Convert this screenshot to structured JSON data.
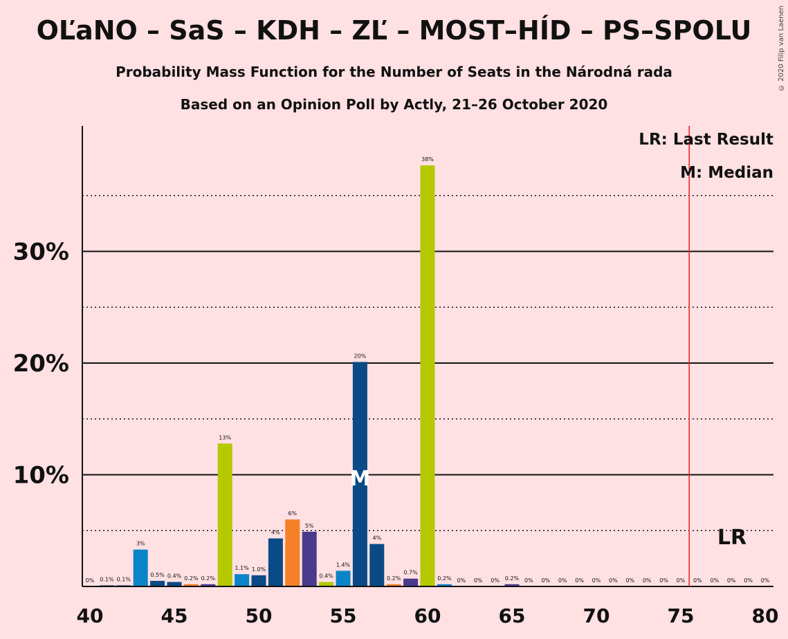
{
  "title": "OĽaNO – SaS – KDH – ZĽ – MOST–HÍD – PS–SPOLU",
  "subtitle": "Probability Mass Function for the Number of Seats in the Národná rada",
  "subtitle2": "Based on an Opinion Poll by Actly, 21–26 October 2020",
  "copyright": "© 2020 Filip van Laenen",
  "legend": {
    "lr": "LR: Last Result",
    "m": "M: Median"
  },
  "markers": {
    "lr_label": "LR",
    "lr_x": 75.5,
    "median_label": "M",
    "median_x": 56
  },
  "colors": {
    "background": "#ffe0e3",
    "lr_line": "#e0201c",
    "olano": "#b5c800",
    "sas": "#0a84c8",
    "kdh": "#0a4a86",
    "zl": "#f58025",
    "ps": "#4a3a8c"
  },
  "chart_data": {
    "type": "bar",
    "xlabel": "",
    "ylabel": "",
    "xlim": [
      40,
      80
    ],
    "ylim": [
      0,
      41
    ],
    "x_ticks": [
      40,
      45,
      50,
      55,
      60,
      65,
      70,
      75,
      80
    ],
    "y_ticks": [
      {
        "value": 10,
        "label": "10%"
      },
      {
        "value": 20,
        "label": "20%"
      },
      {
        "value": 30,
        "label": "30%"
      }
    ],
    "y_dotted_gridlines": [
      5,
      15,
      25,
      35
    ],
    "bars": [
      {
        "x": 40,
        "value": 0,
        "label": "0%",
        "color": "kdh"
      },
      {
        "x": 41,
        "value": 0.1,
        "label": "0.1%",
        "color": "kdh"
      },
      {
        "x": 42,
        "value": 0.1,
        "label": "0.1%",
        "color": "kdh"
      },
      {
        "x": 43,
        "value": 3.3,
        "label": "3%",
        "color": "sas"
      },
      {
        "x": 44,
        "value": 0.5,
        "label": "0.5%",
        "color": "kdh"
      },
      {
        "x": 45,
        "value": 0.4,
        "label": "0.4%",
        "color": "kdh"
      },
      {
        "x": 46,
        "value": 0.2,
        "label": "0.2%",
        "color": "zl"
      },
      {
        "x": 47,
        "value": 0.2,
        "label": "0.2%",
        "color": "ps"
      },
      {
        "x": 48,
        "value": 12.8,
        "label": "13%",
        "color": "olano"
      },
      {
        "x": 49,
        "value": 1.1,
        "label": "1.1%",
        "color": "sas"
      },
      {
        "x": 50,
        "value": 1.0,
        "label": "1.0%",
        "color": "kdh"
      },
      {
        "x": 51,
        "value": 4.3,
        "label": "4%",
        "color": "kdh"
      },
      {
        "x": 52,
        "value": 6.0,
        "label": "6%",
        "color": "zl"
      },
      {
        "x": 53,
        "value": 4.9,
        "label": "5%",
        "color": "ps"
      },
      {
        "x": 54,
        "value": 0.4,
        "label": "0.4%",
        "color": "olano"
      },
      {
        "x": 55,
        "value": 1.4,
        "label": "1.4%",
        "color": "sas"
      },
      {
        "x": 56,
        "value": 20.1,
        "label": "20%",
        "color": "kdh"
      },
      {
        "x": 57,
        "value": 3.8,
        "label": "4%",
        "color": "kdh"
      },
      {
        "x": 58,
        "value": 0.2,
        "label": "0.2%",
        "color": "zl"
      },
      {
        "x": 59,
        "value": 0.7,
        "label": "0.7%",
        "color": "ps"
      },
      {
        "x": 60,
        "value": 37.7,
        "label": "38%",
        "color": "olano"
      },
      {
        "x": 61,
        "value": 0.2,
        "label": "0.2%",
        "color": "sas"
      },
      {
        "x": 62,
        "value": 0,
        "label": "0%",
        "color": "kdh"
      },
      {
        "x": 63,
        "value": 0,
        "label": "0%",
        "color": "kdh"
      },
      {
        "x": 64,
        "value": 0,
        "label": "0%",
        "color": "zl"
      },
      {
        "x": 65,
        "value": 0.2,
        "label": "0.2%",
        "color": "ps"
      },
      {
        "x": 66,
        "value": 0,
        "label": "0%",
        "color": "olano"
      },
      {
        "x": 67,
        "value": 0,
        "label": "0%",
        "color": "sas"
      },
      {
        "x": 68,
        "value": 0,
        "label": "0%",
        "color": "kdh"
      },
      {
        "x": 69,
        "value": 0,
        "label": "0%",
        "color": "kdh"
      },
      {
        "x": 70,
        "value": 0,
        "label": "0%",
        "color": "zl"
      },
      {
        "x": 71,
        "value": 0,
        "label": "0%",
        "color": "ps"
      },
      {
        "x": 72,
        "value": 0,
        "label": "0%",
        "color": "olano"
      },
      {
        "x": 73,
        "value": 0,
        "label": "0%",
        "color": "sas"
      },
      {
        "x": 74,
        "value": 0,
        "label": "0%",
        "color": "kdh"
      },
      {
        "x": 75,
        "value": 0,
        "label": "0%",
        "color": "kdh"
      },
      {
        "x": 76,
        "value": 0,
        "label": "0%",
        "color": "zl"
      },
      {
        "x": 77,
        "value": 0,
        "label": "0%",
        "color": "ps"
      },
      {
        "x": 78,
        "value": 0,
        "label": "0%",
        "color": "olano"
      },
      {
        "x": 79,
        "value": 0,
        "label": "0%",
        "color": "sas"
      },
      {
        "x": 80,
        "value": 0,
        "label": "0%",
        "color": "kdh"
      }
    ]
  }
}
